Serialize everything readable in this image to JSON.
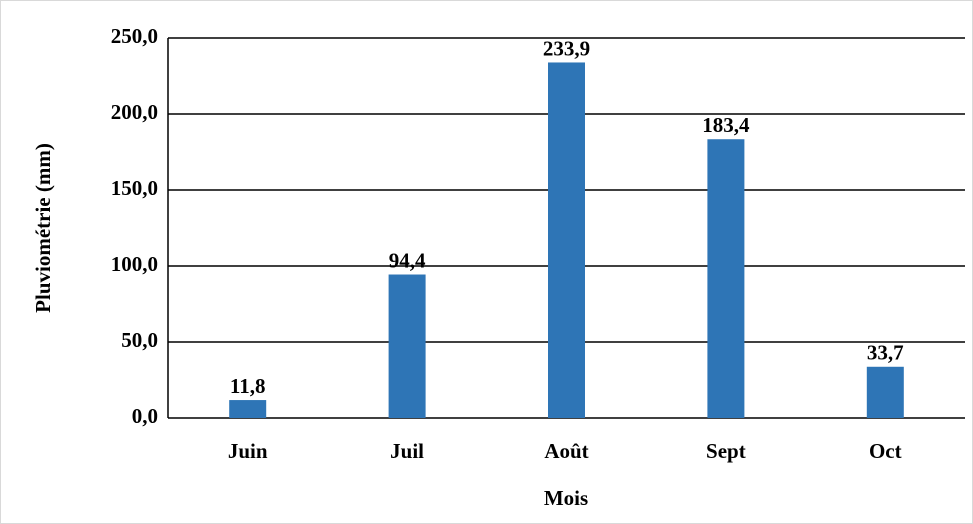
{
  "chart_data": {
    "type": "bar",
    "x_label": "Mois",
    "y_label": "Pluviométrie (mm)",
    "categories": [
      "Juin",
      "Juil",
      "Août",
      "Sept",
      "Oct"
    ],
    "values": [
      11.8,
      94.4,
      233.9,
      183.4,
      33.7
    ],
    "value_labels": [
      "11,8",
      "94,4",
      "233,9",
      "183,4",
      "33,7"
    ],
    "color": "#2e75b6",
    "ylim": [
      0,
      250
    ],
    "yticks": [
      {
        "value": 0,
        "label": "0,0"
      },
      {
        "value": 50,
        "label": "50,0"
      },
      {
        "value": 100,
        "label": "100,0"
      },
      {
        "value": 150,
        "label": "150,0"
      },
      {
        "value": 200,
        "label": "200,0"
      },
      {
        "value": 250,
        "label": "250,0"
      }
    ],
    "grid": true
  }
}
